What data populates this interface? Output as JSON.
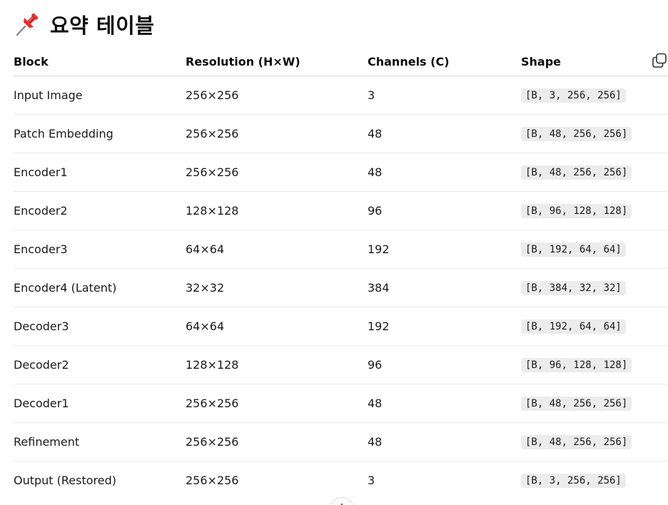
{
  "heading": {
    "icon": "pushpin-icon",
    "text": "요약 테이블"
  },
  "colors": {
    "text": "#0d0d0d",
    "code_bg": "#ececec",
    "pin_red": "#e2322b"
  },
  "table": {
    "columns": [
      "Block",
      "Resolution (H×W)",
      "Channels (C)",
      "Shape"
    ],
    "rows": [
      {
        "block": "Input Image",
        "resolution": "256×256",
        "channels": "3",
        "shape": "[B, 3, 256, 256]"
      },
      {
        "block": "Patch Embedding",
        "resolution": "256×256",
        "channels": "48",
        "shape": "[B, 48, 256, 256]"
      },
      {
        "block": "Encoder1",
        "resolution": "256×256",
        "channels": "48",
        "shape": "[B, 48, 256, 256]"
      },
      {
        "block": "Encoder2",
        "resolution": "128×128",
        "channels": "96",
        "shape": "[B, 96, 128, 128]"
      },
      {
        "block": "Encoder3",
        "resolution": "64×64",
        "channels": "192",
        "shape": "[B, 192, 64, 64]"
      },
      {
        "block": "Encoder4 (Latent)",
        "resolution": "32×32",
        "channels": "384",
        "shape": "[B, 384, 32, 32]"
      },
      {
        "block": "Decoder3",
        "resolution": "64×64",
        "channels": "192",
        "shape": "[B, 192, 64, 64]"
      },
      {
        "block": "Decoder2",
        "resolution": "128×128",
        "channels": "96",
        "shape": "[B, 96, 128, 128]"
      },
      {
        "block": "Decoder1",
        "resolution": "256×256",
        "channels": "48",
        "shape": "[B, 48, 256, 256]"
      },
      {
        "block": "Refinement",
        "resolution": "256×256",
        "channels": "48",
        "shape": "[B, 48, 256, 256]"
      },
      {
        "block": "Output (Restored)",
        "resolution": "256×256",
        "channels": "3",
        "shape": "[B, 3, 256, 256]"
      }
    ]
  },
  "controls": {
    "copy_icon": "copy-icon",
    "scroll_icon": "arrow-down-icon"
  }
}
